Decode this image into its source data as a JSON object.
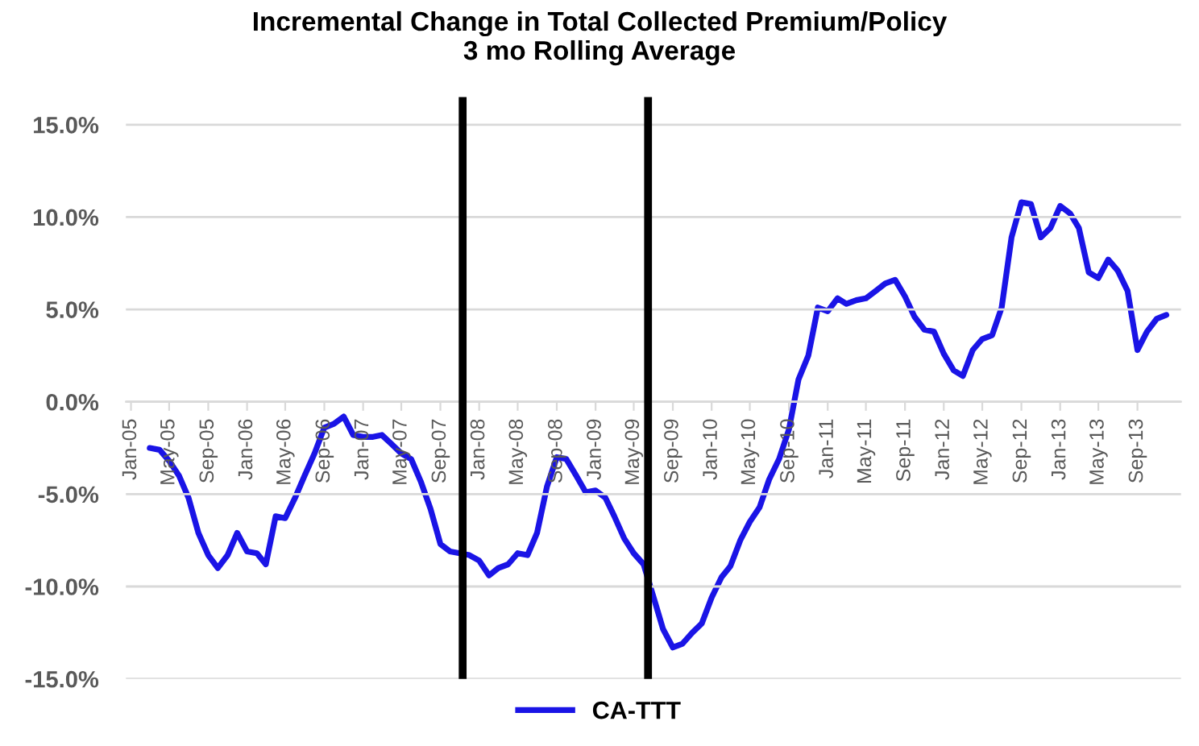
{
  "chart_data": {
    "type": "line",
    "title": "Incremental Change in Total Collected Premium/Policy\n3 mo Rolling Average",
    "x": [
      "2005-03",
      "2005-04",
      "2005-05",
      "2005-06",
      "2005-07",
      "2005-08",
      "2005-09",
      "2005-10",
      "2005-11",
      "2005-12",
      "2006-01",
      "2006-02",
      "2006-03",
      "2006-04",
      "2006-05",
      "2006-06",
      "2006-07",
      "2006-08",
      "2006-09",
      "2006-10",
      "2006-11",
      "2006-12",
      "2007-01",
      "2007-02",
      "2007-03",
      "2007-04",
      "2007-05",
      "2007-06",
      "2007-07",
      "2007-08",
      "2007-09",
      "2007-10",
      "2007-11",
      "2007-12",
      "2008-01",
      "2008-02",
      "2008-03",
      "2008-04",
      "2008-05",
      "2008-06",
      "2008-07",
      "2008-08",
      "2008-09",
      "2008-10",
      "2008-11",
      "2008-12",
      "2009-01",
      "2009-02",
      "2009-03",
      "2009-04",
      "2009-05",
      "2009-06",
      "2009-07",
      "2009-08",
      "2009-09",
      "2009-10",
      "2009-11",
      "2009-12",
      "2010-01",
      "2010-02",
      "2010-03",
      "2010-04",
      "2010-05",
      "2010-06",
      "2010-07",
      "2010-08",
      "2010-09",
      "2010-10",
      "2010-11",
      "2010-12",
      "2011-01",
      "2011-02",
      "2011-03",
      "2011-04",
      "2011-05",
      "2011-06",
      "2011-07",
      "2011-08",
      "2011-09",
      "2011-10",
      "2011-11",
      "2011-12",
      "2012-01",
      "2012-02",
      "2012-03",
      "2012-04",
      "2012-05",
      "2012-06",
      "2012-07",
      "2012-08",
      "2012-09",
      "2012-10",
      "2012-11",
      "2012-12",
      "2013-01",
      "2013-02",
      "2013-03",
      "2013-04",
      "2013-05",
      "2013-06",
      "2013-07",
      "2013-08",
      "2013-09",
      "2013-10",
      "2013-11",
      "2013-12"
    ],
    "series": [
      {
        "name": "CA-TTT",
        "color": "#1a14e6",
        "values": [
          -2.5,
          -2.6,
          -3.2,
          -4.0,
          -5.2,
          -7.1,
          -8.3,
          -9.0,
          -8.3,
          -7.1,
          -8.1,
          -8.2,
          -8.8,
          -6.2,
          -6.3,
          -5.2,
          -4.0,
          -2.8,
          -1.4,
          -1.2,
          -0.8,
          -1.8,
          -1.9,
          -1.9,
          -1.8,
          -2.3,
          -2.8,
          -3.1,
          -4.3,
          -5.8,
          -7.7,
          -8.1,
          -8.2,
          -8.3,
          -8.6,
          -9.4,
          -9.0,
          -8.8,
          -8.2,
          -8.3,
          -7.1,
          -4.6,
          -3.0,
          -3.1,
          -4.0,
          -4.9,
          -4.8,
          -5.2,
          -6.2,
          -7.4,
          -8.2,
          -8.8,
          -10.5,
          -12.3,
          -13.3,
          -13.1,
          -12.5,
          -12.0,
          -10.6,
          -9.5,
          -8.9,
          -7.5,
          -6.5,
          -5.7,
          -4.2,
          -3.1,
          -1.5,
          1.2,
          2.5,
          5.1,
          4.9,
          5.6,
          5.3,
          5.5,
          5.6,
          6.0,
          6.4,
          6.6,
          5.7,
          4.6,
          3.9,
          3.8,
          2.6,
          1.7,
          1.4,
          2.8,
          3.4,
          3.6,
          5.1,
          8.9,
          10.8,
          10.7,
          8.9,
          9.4,
          10.6,
          10.2,
          9.4,
          7.0,
          6.7,
          7.7,
          7.1,
          6.0,
          2.8,
          3.8,
          4.5,
          4.7
        ]
      }
    ],
    "xlim": [
      "2004-12-16",
      "2014-01-16"
    ],
    "xticks": [
      {
        "value": "2005-01",
        "label": "Jan-05"
      },
      {
        "value": "2005-05",
        "label": "May-05"
      },
      {
        "value": "2005-09",
        "label": "Sep-05"
      },
      {
        "value": "2006-01",
        "label": "Jan-06"
      },
      {
        "value": "2006-05",
        "label": "May-06"
      },
      {
        "value": "2006-09",
        "label": "Sep-06"
      },
      {
        "value": "2007-01",
        "label": "Jan-07"
      },
      {
        "value": "2007-05",
        "label": "May-07"
      },
      {
        "value": "2007-09",
        "label": "Sep-07"
      },
      {
        "value": "2008-01",
        "label": "Jan-08"
      },
      {
        "value": "2008-05",
        "label": "May-08"
      },
      {
        "value": "2008-09",
        "label": "Sep-08"
      },
      {
        "value": "2009-01",
        "label": "Jan-09"
      },
      {
        "value": "2009-05",
        "label": "May-09"
      },
      {
        "value": "2009-09",
        "label": "Sep-09"
      },
      {
        "value": "2010-01",
        "label": "Jan-10"
      },
      {
        "value": "2010-05",
        "label": "May-10"
      },
      {
        "value": "2010-09",
        "label": "Sep-10"
      },
      {
        "value": "2011-01",
        "label": "Jan-11"
      },
      {
        "value": "2011-05",
        "label": "May-11"
      },
      {
        "value": "2011-09",
        "label": "Sep-11"
      },
      {
        "value": "2012-01",
        "label": "Jan-12"
      },
      {
        "value": "2012-05",
        "label": "May-12"
      },
      {
        "value": "2012-09",
        "label": "Sep-12"
      },
      {
        "value": "2013-01",
        "label": "Jan-13"
      },
      {
        "value": "2013-05",
        "label": "May-13"
      },
      {
        "value": "2013-09",
        "label": "Sep-13"
      }
    ],
    "ylim": [
      -15,
      16.5
    ],
    "yticks": [
      {
        "value": -15,
        "label": "-15.0%"
      },
      {
        "value": -10,
        "label": "-10.0%"
      },
      {
        "value": -5,
        "label": "-5.0%"
      },
      {
        "value": 0,
        "label": "0.0%"
      },
      {
        "value": 5,
        "label": "5.0%"
      },
      {
        "value": 10,
        "label": "10.0%"
      },
      {
        "value": 15,
        "label": "15.0%"
      }
    ],
    "ref_lines": [
      {
        "axis": "x",
        "value": "2007-11-10",
        "color": "#000000"
      },
      {
        "axis": "x",
        "value": "2009-06-15",
        "color": "#000000"
      }
    ],
    "grid": "y",
    "legend": "bottom",
    "marker": "none",
    "line_style": "solid"
  }
}
